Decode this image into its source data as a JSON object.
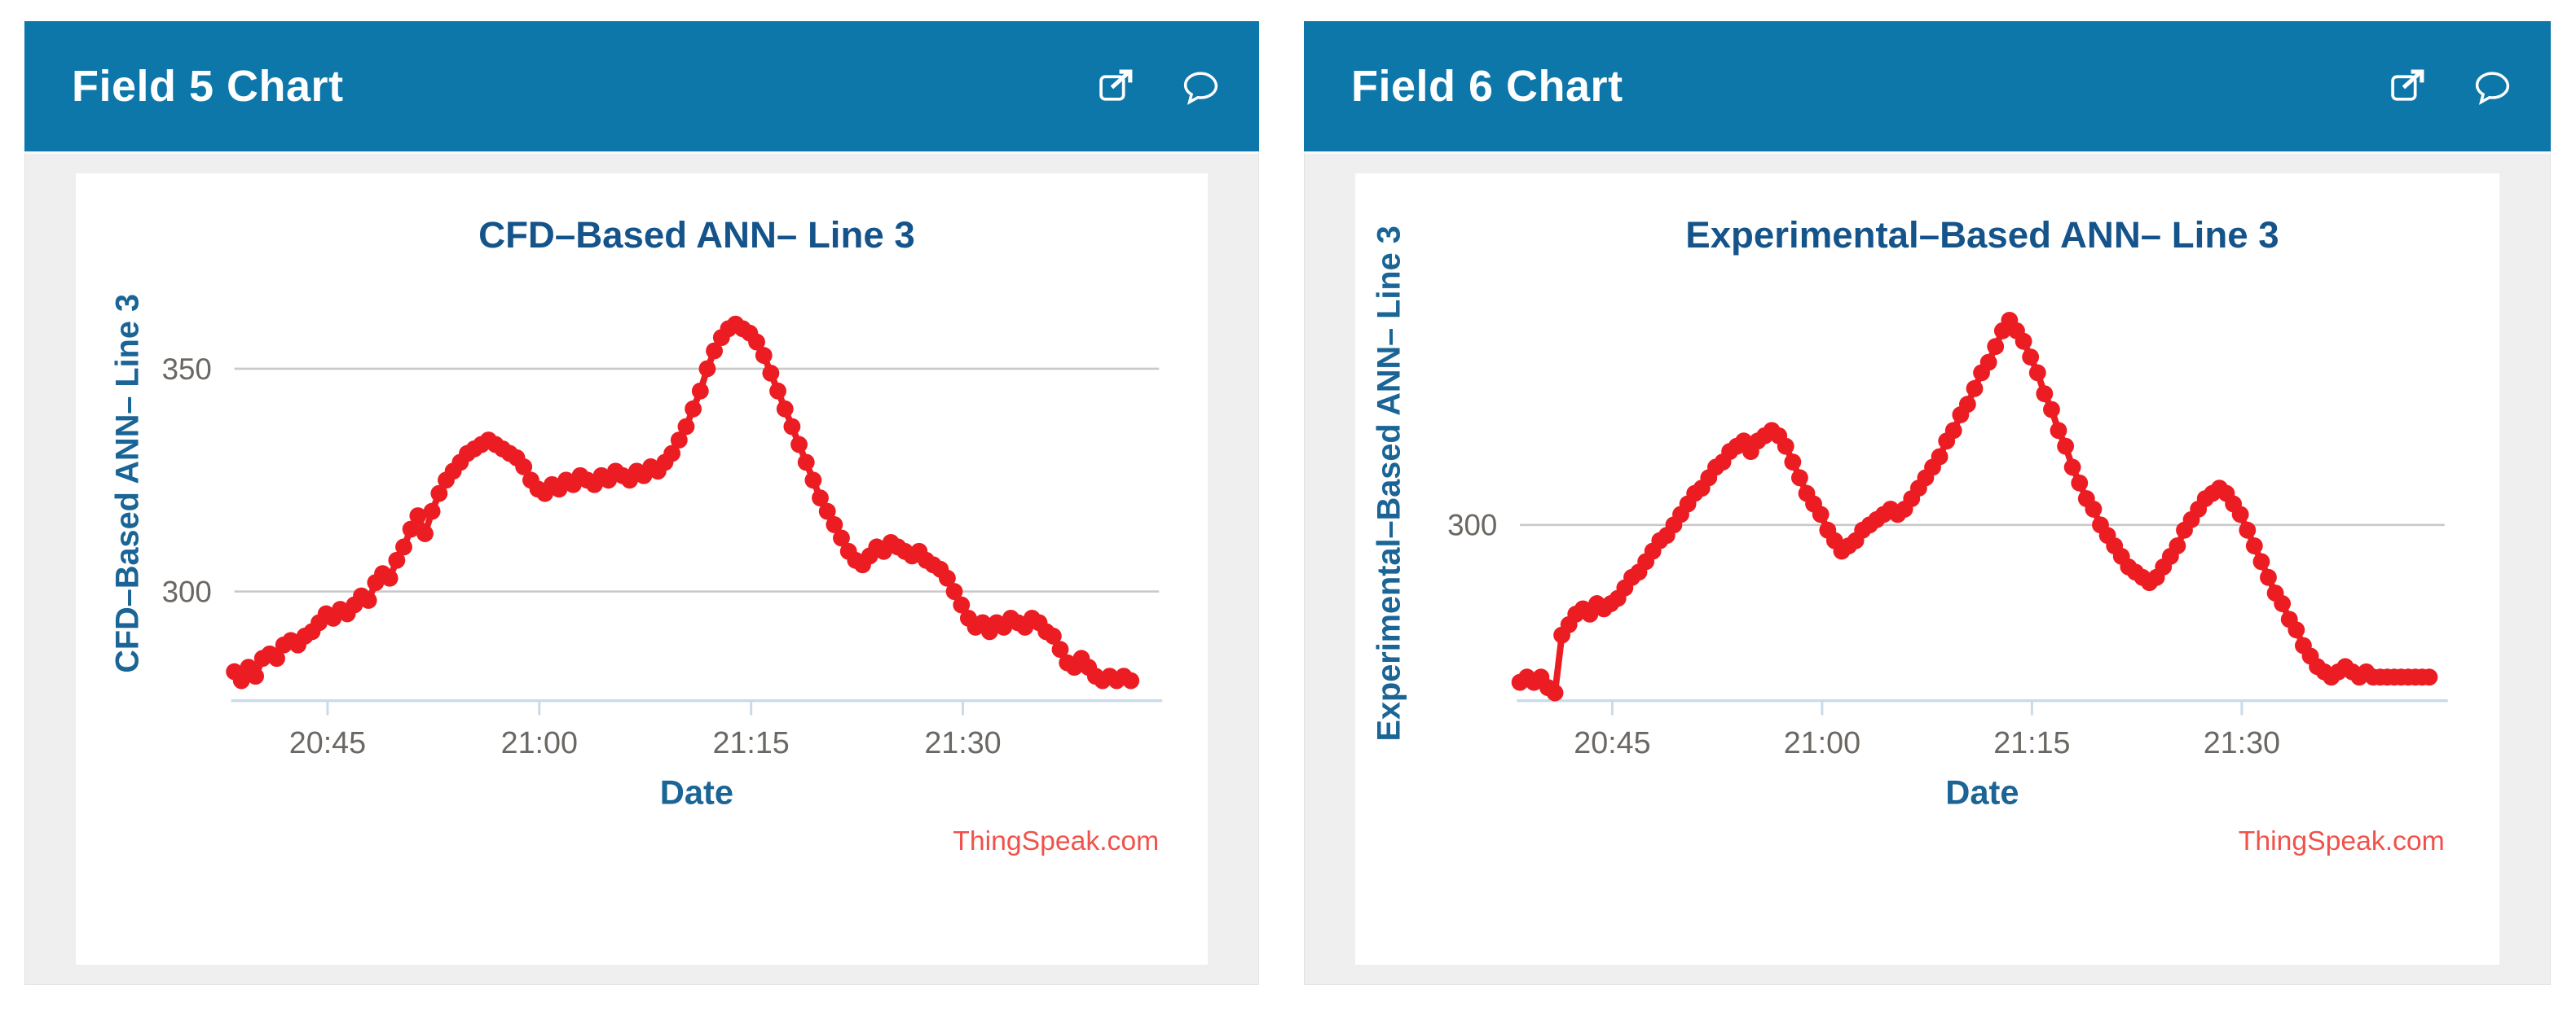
{
  "panels": [
    {
      "header": "Field 5 Chart",
      "icons": [
        "external-link-icon",
        "comment-icon"
      ]
    },
    {
      "header": "Field 6 Chart",
      "icons": [
        "external-link-icon",
        "comment-icon"
      ]
    }
  ],
  "colors": {
    "header_bg": "#0e77aa",
    "panel_body_bg": "#efefef",
    "chart_bg": "#ffffff",
    "title_blue": "#15548a",
    "axis_label_blue": "#1a6496",
    "tick_gray": "#6b6762",
    "grid_gray": "#c9c9c9",
    "axis_line_blue": "#c9dbea",
    "series_red": "#ec1c23",
    "watermark_red": "#f0524a"
  },
  "chart_data": [
    {
      "type": "line",
      "title": "CFD–Based ANN– Line 3",
      "xlabel": "Date",
      "ylabel": "CFD–Based ANN– Line 3",
      "watermark": "ThingSpeak.com",
      "x_unit": "minutes after 20:30",
      "xlim": [
        8.4,
        73.9
      ],
      "ylim": [
        275.5,
        373.0
      ],
      "yticks": [
        300,
        350
      ],
      "xticks": [
        {
          "t": 15,
          "label": "20:45"
        },
        {
          "t": 30,
          "label": "21:00"
        },
        {
          "t": 45,
          "label": "21:15"
        },
        {
          "t": 60,
          "label": "21:30"
        }
      ],
      "grid": true,
      "legend": false,
      "x_start": 8.4,
      "x_step": 0.5,
      "values": [
        282,
        280,
        283,
        281,
        285,
        286,
        285,
        288,
        289,
        288,
        290,
        291,
        293,
        295,
        294,
        296,
        295,
        297,
        299,
        298,
        302,
        304,
        303,
        307,
        310,
        314,
        317,
        313,
        318,
        322,
        325,
        327,
        329,
        331,
        332,
        333,
        334,
        333,
        332,
        331,
        330,
        328,
        325,
        323,
        322,
        324,
        323,
        325,
        324,
        326,
        325,
        324,
        326,
        325,
        327,
        326,
        325,
        327,
        326,
        328,
        327,
        329,
        331,
        334,
        337,
        341,
        345,
        350,
        354,
        357,
        359,
        360,
        359,
        358,
        356,
        353,
        349,
        345,
        341,
        337,
        333,
        329,
        325,
        321,
        318,
        315,
        312,
        309,
        307,
        306,
        308,
        310,
        309,
        311,
        310,
        309,
        308,
        309,
        307,
        306,
        305,
        303,
        300,
        297,
        294,
        292,
        293,
        291,
        293,
        292,
        294,
        293,
        292,
        294,
        293,
        291,
        290,
        287,
        284,
        283,
        285,
        283,
        281,
        280,
        281,
        280,
        281,
        280
      ]
    },
    {
      "type": "line",
      "title": "Experimental–Based ANN– Line 3",
      "xlabel": "Date",
      "ylabel": "Experimental–Based ANN– Line 3",
      "watermark": "ThingSpeak.com",
      "x_unit": "minutes after 20:30",
      "xlim": [
        8.4,
        74.5
      ],
      "ylim": [
        266.5,
        349.3
      ],
      "yticks": [
        300
      ],
      "xticks": [
        {
          "t": 15,
          "label": "20:45"
        },
        {
          "t": 30,
          "label": "21:00"
        },
        {
          "t": 45,
          "label": "21:15"
        },
        {
          "t": 60,
          "label": "21:30"
        }
      ],
      "grid": true,
      "legend": false,
      "x_start": 8.4,
      "x_step": 0.5,
      "values": [
        270,
        271,
        270,
        271,
        269,
        268,
        279,
        281,
        283,
        284,
        283,
        285,
        284,
        285,
        286,
        288,
        290,
        291,
        293,
        295,
        297,
        298,
        300,
        302,
        304,
        306,
        307,
        309,
        311,
        312,
        314,
        315,
        316,
        314,
        316,
        317,
        318,
        317,
        315,
        312,
        309,
        306,
        304,
        302,
        299,
        297,
        295,
        296,
        297,
        299,
        300,
        301,
        302,
        303,
        302,
        303,
        305,
        307,
        309,
        311,
        313,
        316,
        318,
        321,
        323,
        326,
        329,
        331,
        334,
        337,
        339,
        337,
        335,
        332,
        329,
        325,
        322,
        318,
        315,
        311,
        308,
        305,
        303,
        300,
        298,
        296,
        294,
        292,
        291,
        290,
        289,
        290,
        292,
        294,
        296,
        299,
        301,
        303,
        305,
        306,
        307,
        306,
        304,
        302,
        299,
        296,
        293,
        290,
        287,
        285,
        282,
        280,
        277,
        275,
        273,
        272,
        271,
        272,
        273,
        272,
        271,
        272,
        271,
        271,
        271,
        271,
        271,
        271,
        271,
        271,
        271
      ]
    }
  ]
}
